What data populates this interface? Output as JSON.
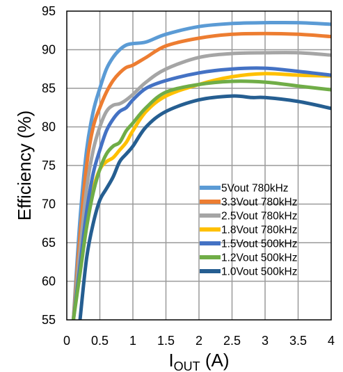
{
  "chart_data": {
    "type": "line",
    "title": "",
    "xlabel_main": "I",
    "xlabel_sub": "OUT",
    "xlabel_unit": " (A)",
    "ylabel": "Efficiency (%)",
    "xlim": [
      0,
      4
    ],
    "ylim": [
      55,
      95
    ],
    "xticks": [
      0,
      0.5,
      1,
      1.5,
      2,
      2.5,
      3,
      3.5,
      4
    ],
    "xtick_labels": [
      "0",
      "0.5",
      "1",
      "1.5",
      "2",
      "2.5",
      "3",
      "3.5",
      "4"
    ],
    "yticks": [
      55,
      60,
      65,
      70,
      75,
      80,
      85,
      90,
      95
    ],
    "ytick_labels": [
      "55",
      "60",
      "65",
      "70",
      "75",
      "80",
      "85",
      "90",
      "95"
    ],
    "grid": true,
    "legend_position": "bottom-right",
    "series": [
      {
        "name": "5Vout 780kHz",
        "color": "#5b9bd5",
        "x": [
          0.1,
          0.2,
          0.3,
          0.4,
          0.5,
          0.6,
          0.7,
          0.8,
          0.9,
          1.0,
          1.2,
          1.5,
          2.0,
          2.5,
          3.0,
          3.5,
          4.0
        ],
        "y": [
          55,
          68,
          77,
          82,
          85,
          87.5,
          89,
          90,
          90.6,
          90.8,
          91,
          92,
          93,
          93.4,
          93.5,
          93.5,
          93.3
        ]
      },
      {
        "name": "3.3Vout 780kHz",
        "color": "#ed7d31",
        "x": [
          0.1,
          0.2,
          0.3,
          0.4,
          0.5,
          0.6,
          0.7,
          0.8,
          0.9,
          1.0,
          1.2,
          1.5,
          2.0,
          2.5,
          3.0,
          3.5,
          4.0
        ],
        "y": [
          55,
          66,
          75,
          80,
          82.5,
          84.5,
          86,
          87,
          87.7,
          88,
          89,
          90.5,
          91.5,
          92,
          92.1,
          92,
          91.7
        ]
      },
      {
        "name": "2.5Vout 780kHz",
        "color": "#a5a5a5",
        "x": [
          0.1,
          0.2,
          0.3,
          0.4,
          0.5,
          0.6,
          0.7,
          0.8,
          0.9,
          1.0,
          1.2,
          1.5,
          2.0,
          2.5,
          3.0,
          3.5,
          4.0
        ],
        "y": [
          55,
          64,
          72,
          77,
          80,
          82,
          82.8,
          83,
          83.5,
          84.2,
          85.8,
          87.5,
          89,
          89.5,
          89.6,
          89.6,
          89.3
        ]
      },
      {
        "name": "1.8Vout 780kHz",
        "color": "#ffc000",
        "x": [
          0.1,
          0.2,
          0.3,
          0.4,
          0.5,
          0.6,
          0.7,
          0.8,
          0.9,
          1.0,
          1.2,
          1.5,
          2.0,
          2.5,
          3.0,
          3.5,
          4.0
        ],
        "y": [
          55,
          62,
          68,
          72,
          74.5,
          75.5,
          76,
          77,
          78,
          79.5,
          82,
          84,
          85.5,
          86.5,
          86.9,
          86.7,
          86.6
        ]
      },
      {
        "name": "1.5Vout 500kHz",
        "color": "#4472c4",
        "x": [
          0.1,
          0.2,
          0.3,
          0.4,
          0.5,
          0.6,
          0.7,
          0.8,
          0.9,
          1.0,
          1.2,
          1.5,
          2.0,
          2.5,
          3.0,
          3.5,
          4.0
        ],
        "y": [
          55,
          62,
          69,
          74,
          77,
          79.5,
          81,
          82,
          82.5,
          83.5,
          85,
          86,
          87,
          87.5,
          87.6,
          87.2,
          86.7
        ]
      },
      {
        "name": "1.2Vout 500kHz",
        "color": "#70ad47",
        "x": [
          0.1,
          0.2,
          0.3,
          0.4,
          0.5,
          0.6,
          0.7,
          0.8,
          0.9,
          1.0,
          1.2,
          1.5,
          2.0,
          2.5,
          3.0,
          3.5,
          4.0
        ],
        "y": [
          55,
          61,
          67,
          71.5,
          74.5,
          76.5,
          77.5,
          78,
          79.5,
          80.5,
          82.5,
          84.5,
          85.5,
          85.9,
          85.8,
          85.3,
          84.8
        ]
      },
      {
        "name": "1.0Vout 500kHz",
        "color": "#255e91",
        "x": [
          0.2,
          0.3,
          0.4,
          0.5,
          0.6,
          0.7,
          0.8,
          0.9,
          1.0,
          1.2,
          1.5,
          2.0,
          2.5,
          2.8,
          3.0,
          3.5,
          4.0
        ],
        "y": [
          55,
          63,
          67.5,
          70.5,
          72,
          73.5,
          75.5,
          76.5,
          77.5,
          80,
          82,
          83.5,
          84,
          83.8,
          83.8,
          83.3,
          82.4
        ]
      }
    ]
  }
}
